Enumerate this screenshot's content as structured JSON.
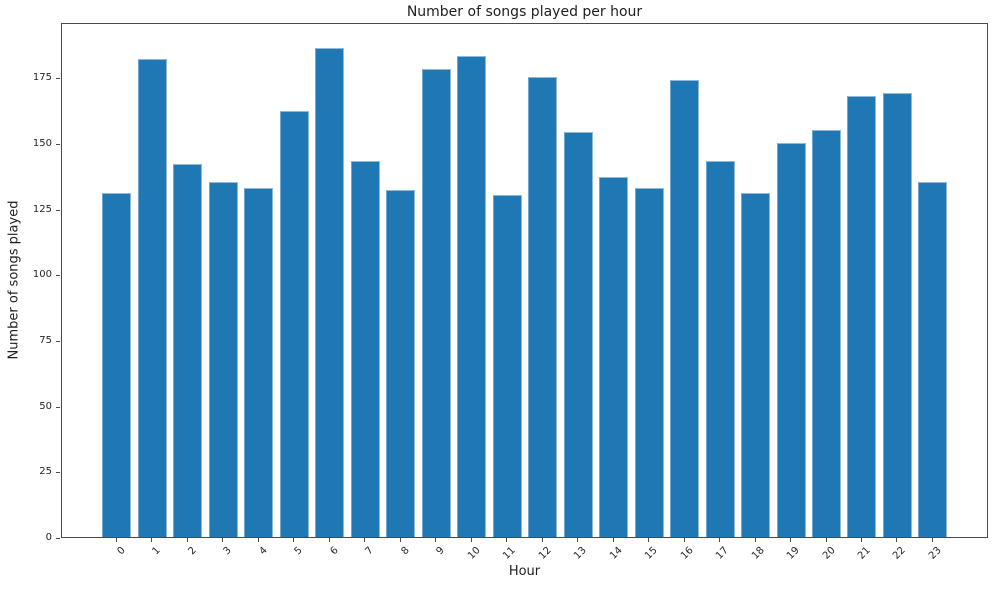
{
  "chart_data": {
    "type": "bar",
    "title": "Number of songs played per hour",
    "xlabel": "Hour",
    "ylabel": "Number of songs played",
    "categories": [
      "0",
      "1",
      "2",
      "3",
      "4",
      "5",
      "6",
      "7",
      "8",
      "9",
      "10",
      "11",
      "12",
      "13",
      "14",
      "15",
      "16",
      "17",
      "18",
      "19",
      "20",
      "21",
      "22",
      "23"
    ],
    "values": [
      131,
      182,
      142,
      135,
      133,
      162,
      186,
      143,
      132,
      178,
      183,
      130,
      175,
      154,
      137,
      133,
      174,
      143,
      131,
      150,
      155,
      168,
      169,
      135
    ],
    "ylim": [
      0,
      196
    ],
    "yticks": [
      0,
      25,
      50,
      75,
      100,
      125,
      150,
      175
    ],
    "xtick_rotation_deg": 45,
    "grid": false,
    "legend_position": "none",
    "colors": {
      "bar": "#1f77b4",
      "spine": "#4a4a4a",
      "text": "#262626",
      "background": "#ffffff"
    }
  }
}
